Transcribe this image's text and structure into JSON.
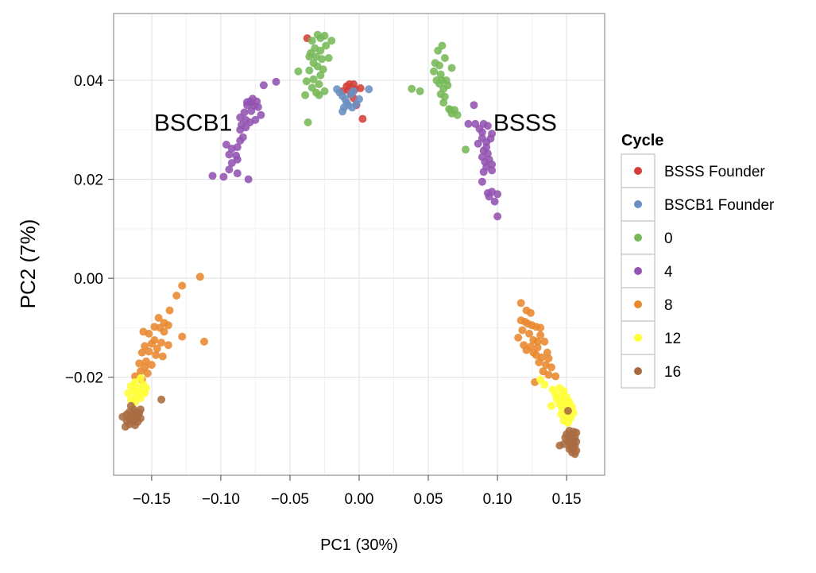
{
  "chart_data": {
    "type": "scatter",
    "title": "",
    "xlabel": "PC1 (30%)",
    "ylabel": "PC2 (7%)",
    "xlim": [
      -0.1775,
      0.1775
    ],
    "ylim": [
      -0.0398,
      0.0535
    ],
    "xticks": [
      -0.15,
      -0.1,
      -0.05,
      0.0,
      0.05,
      0.1,
      0.15
    ],
    "xtick_labels": [
      "−0.15",
      "−0.10",
      "−0.05",
      "0.00",
      "0.05",
      "0.10",
      "0.15"
    ],
    "yticks": [
      -0.02,
      0.0,
      0.02,
      0.04
    ],
    "ytick_labels": [
      "−0.02",
      "0.00",
      "0.02",
      "0.04"
    ],
    "grid": true,
    "legend": {
      "title": "Cycle",
      "position": "right"
    },
    "annotations": [
      {
        "text": "BSCB1",
        "x": -0.12,
        "y": 0.0298
      },
      {
        "text": "BSSS",
        "x": 0.12,
        "y": 0.0298
      }
    ],
    "series": [
      {
        "name": "BSSS Founder",
        "color": "#D43F3A",
        "points": [
          [
            -0.0375,
            0.0485
          ],
          [
            -0.007,
            0.0392
          ],
          [
            -0.004,
            0.0392
          ],
          [
            -0.009,
            0.0388
          ],
          [
            -0.003,
            0.0382
          ],
          [
            -0.012,
            0.0378
          ],
          [
            -0.006,
            0.0372
          ],
          [
            -0.004,
            0.0364
          ],
          [
            0.001,
            0.0384
          ],
          [
            -0.002,
            0.035
          ],
          [
            0.0025,
            0.0322
          ],
          [
            -0.008,
            0.038
          ]
        ]
      },
      {
        "name": "BSCB1 Founder",
        "color": "#6B8FC2",
        "points": [
          [
            -0.016,
            0.0382
          ],
          [
            -0.014,
            0.0375
          ],
          [
            -0.012,
            0.0368
          ],
          [
            -0.01,
            0.0362
          ],
          [
            -0.009,
            0.0354
          ],
          [
            -0.011,
            0.0345
          ],
          [
            -0.012,
            0.0337
          ],
          [
            -0.008,
            0.035
          ],
          [
            -0.005,
            0.0345
          ],
          [
            -0.002,
            0.0352
          ],
          [
            0.0,
            0.0362
          ],
          [
            0.007,
            0.0382
          ],
          [
            -0.006,
            0.0372
          ],
          [
            -0.004,
            0.0378
          ]
        ]
      },
      {
        "name": "0",
        "color": "#76B857",
        "points": [
          [
            -0.034,
            0.048
          ],
          [
            -0.03,
            0.0492
          ],
          [
            -0.028,
            0.0485
          ],
          [
            -0.025,
            0.049
          ],
          [
            -0.032,
            0.0465
          ],
          [
            -0.028,
            0.046
          ],
          [
            -0.035,
            0.0455
          ],
          [
            -0.036,
            0.0448
          ],
          [
            -0.031,
            0.0448
          ],
          [
            -0.027,
            0.0443
          ],
          [
            -0.022,
            0.0445
          ],
          [
            -0.033,
            0.0435
          ],
          [
            -0.03,
            0.0428
          ],
          [
            -0.026,
            0.0422
          ],
          [
            -0.036,
            0.042
          ],
          [
            -0.044,
            0.0418
          ],
          [
            -0.028,
            0.041
          ],
          [
            -0.033,
            0.0402
          ],
          [
            -0.038,
            0.0398
          ],
          [
            -0.024,
            0.047
          ],
          [
            -0.02,
            0.048
          ],
          [
            -0.029,
            0.0392
          ],
          [
            -0.034,
            0.0385
          ],
          [
            -0.025,
            0.0378
          ],
          [
            -0.031,
            0.0375
          ],
          [
            -0.039,
            0.037
          ],
          [
            -0.029,
            0.037
          ],
          [
            -0.037,
            0.0315
          ],
          [
            0.06,
            0.047
          ],
          [
            0.057,
            0.046
          ],
          [
            0.062,
            0.0445
          ],
          [
            0.067,
            0.0425
          ],
          [
            0.055,
            0.0435
          ],
          [
            0.058,
            0.043
          ],
          [
            0.054,
            0.0418
          ],
          [
            0.059,
            0.0412
          ],
          [
            0.056,
            0.04
          ],
          [
            0.06,
            0.04
          ],
          [
            0.063,
            0.04
          ],
          [
            0.058,
            0.0393
          ],
          [
            0.064,
            0.039
          ],
          [
            0.061,
            0.0383
          ],
          [
            0.038,
            0.0383
          ],
          [
            0.044,
            0.0378
          ],
          [
            0.059,
            0.0372
          ],
          [
            0.062,
            0.0367
          ],
          [
            0.061,
            0.0355
          ],
          [
            0.066,
            0.034
          ],
          [
            0.069,
            0.034
          ],
          [
            0.067,
            0.0333
          ],
          [
            0.071,
            0.033
          ],
          [
            0.065,
            0.0342
          ],
          [
            0.077,
            0.026
          ]
        ]
      },
      {
        "name": "4",
        "color": "#9353B0",
        "points": [
          [
            -0.06,
            0.0397
          ],
          [
            -0.069,
            0.039
          ],
          [
            -0.077,
            0.0363
          ],
          [
            -0.079,
            0.0357
          ],
          [
            -0.081,
            0.0356
          ],
          [
            -0.078,
            0.0355
          ],
          [
            -0.074,
            0.0357
          ],
          [
            -0.081,
            0.035
          ],
          [
            -0.076,
            0.0348
          ],
          [
            -0.073,
            0.0346
          ],
          [
            -0.083,
            0.0335
          ],
          [
            -0.078,
            0.0338
          ],
          [
            -0.071,
            0.033
          ],
          [
            -0.086,
            0.0325
          ],
          [
            -0.082,
            0.032
          ],
          [
            -0.079,
            0.0315
          ],
          [
            -0.085,
            0.031
          ],
          [
            -0.082,
            0.0305
          ],
          [
            -0.086,
            0.03
          ],
          [
            -0.084,
            0.0285
          ],
          [
            -0.086,
            0.0278
          ],
          [
            -0.088,
            0.0265
          ],
          [
            -0.096,
            0.027
          ],
          [
            -0.092,
            0.0262
          ],
          [
            -0.089,
            0.0248
          ],
          [
            -0.094,
            0.025
          ],
          [
            -0.088,
            0.024
          ],
          [
            -0.092,
            0.0233
          ],
          [
            -0.094,
            0.022
          ],
          [
            -0.106,
            0.0207
          ],
          [
            -0.098,
            0.0205
          ],
          [
            -0.088,
            0.0212
          ],
          [
            -0.08,
            0.02
          ],
          [
            -0.075,
            0.032
          ],
          [
            0.083,
            0.035
          ],
          [
            0.079,
            0.0312
          ],
          [
            0.084,
            0.0312
          ],
          [
            0.09,
            0.0312
          ],
          [
            0.093,
            0.0308
          ],
          [
            0.087,
            0.0302
          ],
          [
            0.089,
            0.0295
          ],
          [
            0.096,
            0.0292
          ],
          [
            0.089,
            0.0283
          ],
          [
            0.095,
            0.0282
          ],
          [
            0.092,
            0.0275
          ],
          [
            0.086,
            0.0272
          ],
          [
            0.092,
            0.0265
          ],
          [
            0.09,
            0.0258
          ],
          [
            0.093,
            0.0252
          ],
          [
            0.089,
            0.0245
          ],
          [
            0.094,
            0.024
          ],
          [
            0.091,
            0.0235
          ],
          [
            0.096,
            0.023
          ],
          [
            0.092,
            0.0225
          ],
          [
            0.096,
            0.0218
          ],
          [
            0.09,
            0.0215
          ],
          [
            0.089,
            0.0195
          ],
          [
            0.096,
            0.0175
          ],
          [
            0.094,
            0.0165
          ],
          [
            0.1,
            0.017
          ],
          [
            0.093,
            0.0172
          ],
          [
            0.098,
            0.0155
          ],
          [
            0.1,
            0.0125
          ]
        ]
      },
      {
        "name": "8",
        "color": "#E8892D",
        "points": [
          [
            -0.115,
            0.0003
          ],
          [
            -0.128,
            -0.0015
          ],
          [
            -0.132,
            -0.0035
          ],
          [
            -0.137,
            -0.0065
          ],
          [
            -0.145,
            -0.008
          ],
          [
            -0.141,
            -0.009
          ],
          [
            -0.138,
            -0.0095
          ],
          [
            -0.148,
            -0.0098
          ],
          [
            -0.144,
            -0.01
          ],
          [
            -0.141,
            -0.0108
          ],
          [
            -0.156,
            -0.0108
          ],
          [
            -0.152,
            -0.0112
          ],
          [
            -0.128,
            -0.0118
          ],
          [
            -0.148,
            -0.0125
          ],
          [
            -0.143,
            -0.013
          ],
          [
            -0.112,
            -0.0128
          ],
          [
            -0.15,
            -0.0132
          ],
          [
            -0.155,
            -0.0137
          ],
          [
            -0.138,
            -0.0135
          ],
          [
            -0.146,
            -0.0142
          ],
          [
            -0.152,
            -0.0148
          ],
          [
            -0.157,
            -0.015
          ],
          [
            -0.147,
            -0.0155
          ],
          [
            -0.142,
            -0.0158
          ],
          [
            -0.154,
            -0.0168
          ],
          [
            -0.159,
            -0.0172
          ],
          [
            -0.15,
            -0.0175
          ],
          [
            -0.155,
            -0.018
          ],
          [
            -0.158,
            -0.0188
          ],
          [
            -0.162,
            -0.0198
          ],
          [
            -0.153,
            -0.0192
          ],
          [
            -0.157,
            -0.0205
          ],
          [
            0.117,
            -0.005
          ],
          [
            0.121,
            -0.0065
          ],
          [
            0.124,
            -0.007
          ],
          [
            0.117,
            -0.0085
          ],
          [
            0.12,
            -0.0088
          ],
          [
            0.122,
            -0.0092
          ],
          [
            0.125,
            -0.0095
          ],
          [
            0.128,
            -0.0098
          ],
          [
            0.131,
            -0.01
          ],
          [
            0.118,
            -0.0105
          ],
          [
            0.123,
            -0.0112
          ],
          [
            0.131,
            -0.0115
          ],
          [
            0.115,
            -0.012
          ],
          [
            0.126,
            -0.0125
          ],
          [
            0.129,
            -0.0128
          ],
          [
            0.134,
            -0.0128
          ],
          [
            0.119,
            -0.0135
          ],
          [
            0.124,
            -0.0138
          ],
          [
            0.129,
            -0.014
          ],
          [
            0.121,
            -0.0145
          ],
          [
            0.126,
            -0.015
          ],
          [
            0.136,
            -0.015
          ],
          [
            0.128,
            -0.0155
          ],
          [
            0.132,
            -0.016
          ],
          [
            0.137,
            -0.0162
          ],
          [
            0.13,
            -0.017
          ],
          [
            0.135,
            -0.0175
          ],
          [
            0.139,
            -0.018
          ],
          [
            0.133,
            -0.0188
          ],
          [
            0.137,
            -0.0195
          ],
          [
            0.127,
            -0.021
          ],
          [
            0.142,
            -0.0198
          ]
        ]
      },
      {
        "name": "12",
        "color": "#FFFF33",
        "points": [
          [
            -0.158,
            -0.0202
          ],
          [
            -0.162,
            -0.021
          ],
          [
            -0.156,
            -0.0215
          ],
          [
            -0.165,
            -0.0218
          ],
          [
            -0.16,
            -0.0222
          ],
          [
            -0.154,
            -0.0222
          ],
          [
            -0.163,
            -0.0228
          ],
          [
            -0.158,
            -0.023
          ],
          [
            -0.167,
            -0.0232
          ],
          [
            -0.155,
            -0.0232
          ],
          [
            -0.161,
            -0.0238
          ],
          [
            -0.165,
            -0.0245
          ],
          [
            -0.158,
            -0.0242
          ],
          [
            -0.162,
            -0.025
          ],
          [
            0.131,
            -0.0205
          ],
          [
            0.134,
            -0.0215
          ],
          [
            0.14,
            -0.0225
          ],
          [
            0.145,
            -0.0222
          ],
          [
            0.148,
            -0.0228
          ],
          [
            0.142,
            -0.0235
          ],
          [
            0.146,
            -0.0238
          ],
          [
            0.15,
            -0.024
          ],
          [
            0.143,
            -0.0245
          ],
          [
            0.148,
            -0.025
          ],
          [
            0.152,
            -0.025
          ],
          [
            0.145,
            -0.0255
          ],
          [
            0.15,
            -0.0258
          ],
          [
            0.154,
            -0.026
          ],
          [
            0.147,
            -0.0265
          ],
          [
            0.151,
            -0.0268
          ],
          [
            0.155,
            -0.0272
          ],
          [
            0.146,
            -0.0275
          ],
          [
            0.15,
            -0.0278
          ],
          [
            0.153,
            -0.0282
          ],
          [
            0.148,
            -0.0288
          ],
          [
            0.151,
            -0.0292
          ],
          [
            0.139,
            -0.0258
          ]
        ]
      },
      {
        "name": "16",
        "color": "#A86B41",
        "points": [
          [
            -0.143,
            -0.0245
          ],
          [
            -0.165,
            -0.0258
          ],
          [
            -0.163,
            -0.0265
          ],
          [
            -0.158,
            -0.0265
          ],
          [
            -0.166,
            -0.027
          ],
          [
            -0.162,
            -0.0272
          ],
          [
            -0.159,
            -0.0272
          ],
          [
            -0.168,
            -0.0275
          ],
          [
            -0.164,
            -0.0278
          ],
          [
            -0.16,
            -0.0278
          ],
          [
            -0.171,
            -0.028
          ],
          [
            -0.166,
            -0.0283
          ],
          [
            -0.162,
            -0.0285
          ],
          [
            -0.158,
            -0.0283
          ],
          [
            -0.168,
            -0.0288
          ],
          [
            -0.164,
            -0.029
          ],
          [
            -0.16,
            -0.029
          ],
          [
            -0.166,
            -0.0295
          ],
          [
            -0.162,
            -0.0297
          ],
          [
            -0.169,
            -0.03
          ],
          [
            0.151,
            -0.0268
          ],
          [
            0.152,
            -0.0308
          ],
          [
            0.155,
            -0.031
          ],
          [
            0.157,
            -0.0312
          ],
          [
            0.15,
            -0.0315
          ],
          [
            0.153,
            -0.0318
          ],
          [
            0.156,
            -0.032
          ],
          [
            0.149,
            -0.0322
          ],
          [
            0.152,
            -0.0325
          ],
          [
            0.155,
            -0.0327
          ],
          [
            0.157,
            -0.033
          ],
          [
            0.151,
            -0.033
          ],
          [
            0.154,
            -0.0335
          ],
          [
            0.156,
            -0.0338
          ],
          [
            0.148,
            -0.0335
          ],
          [
            0.153,
            -0.034
          ],
          [
            0.155,
            -0.0345
          ],
          [
            0.157,
            -0.0348
          ],
          [
            0.152,
            -0.0345
          ],
          [
            0.145,
            -0.0338
          ],
          [
            0.154,
            -0.0352
          ],
          [
            0.156,
            -0.0355
          ]
        ]
      }
    ]
  }
}
